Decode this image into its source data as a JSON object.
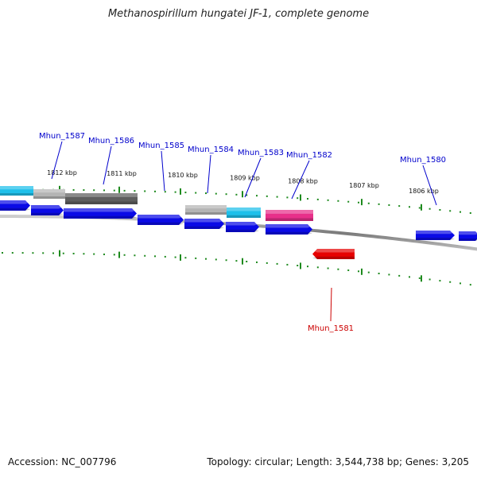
{
  "title": "Methanospirillum hungatei JF-1, complete genome",
  "footer": {
    "accession": "Accession: NC_007796",
    "topology": "Topology: circular; Length: 3,544,738 bp; Genes: 3,205"
  },
  "colors": {
    "cds": "#0a0ae6",
    "cds_highlight": "#e60000",
    "trna": "#e8308a",
    "cyan_feature": "#1ec0ea",
    "gray_light": "#b4b4b4",
    "gray_dark": "#5e5e5e",
    "tick": "#1e8a1e",
    "backbone": "#8a8a8a",
    "label": "#0000cc",
    "label_highlight": "#cc0000"
  },
  "ticks": [
    {
      "label": "1812 kbp"
    },
    {
      "label": "1811 kbp"
    },
    {
      "label": "1810 kbp"
    },
    {
      "label": "1809 kbp"
    },
    {
      "label": "1808 kbp"
    },
    {
      "label": "1807 kbp"
    },
    {
      "label": "1806 kbp"
    }
  ],
  "genes": [
    {
      "name": "Mhun_1587",
      "strand": "+",
      "labeled": true
    },
    {
      "name": "Mhun_1586",
      "strand": "+",
      "labeled": true
    },
    {
      "name": "Mhun_1585",
      "strand": "+",
      "labeled": true
    },
    {
      "name": "Mhun_1584",
      "strand": "+",
      "labeled": true
    },
    {
      "name": "Mhun_1583",
      "strand": "+",
      "labeled": true
    },
    {
      "name": "Mhun_1582",
      "strand": "+",
      "labeled": true
    },
    {
      "name": "Mhun_1581",
      "strand": "-",
      "labeled": true,
      "highlight": true
    },
    {
      "name": "Mhun_1580",
      "strand": "+",
      "labeled": true
    }
  ]
}
